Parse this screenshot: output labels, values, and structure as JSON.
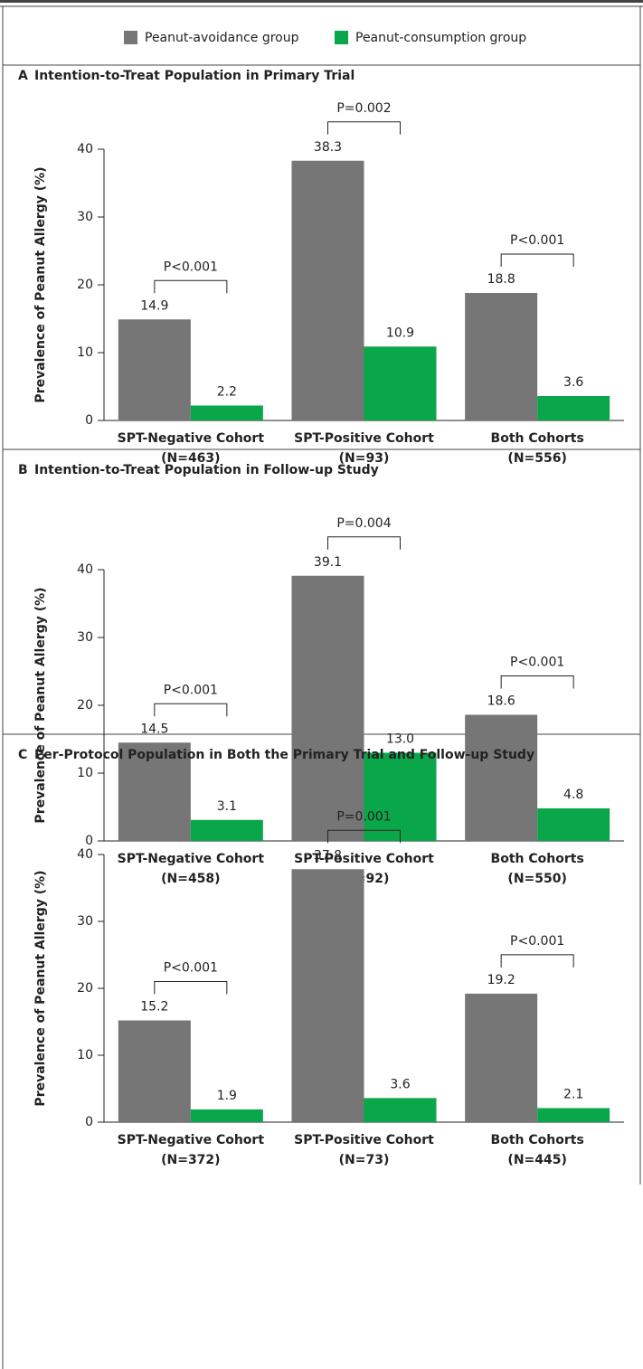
{
  "chart_data": [
    {
      "type": "bar",
      "label": "A",
      "title": "Intention-to-Treat Population in Primary Trial",
      "ylabel": "Prevalence of Peanut Allergy (%)",
      "categories": [
        "SPT-Negative Cohort",
        "SPT-Positive Cohort",
        "Both Cohorts"
      ],
      "n_labels": [
        "(N=463)",
        "(N=93)",
        "(N=556)"
      ],
      "p_values": [
        "P<0.001",
        "P=0.002",
        "P<0.001"
      ],
      "series": [
        {
          "name": "Peanut-avoidance group",
          "color": "#767676",
          "values": [
            14.9,
            38.3,
            18.8
          ],
          "value_labels": [
            "14.9",
            "38.3",
            "18.8"
          ]
        },
        {
          "name": "Peanut-consumption group",
          "color": "#0aa64a",
          "values": [
            2.2,
            10.9,
            3.6
          ],
          "value_labels": [
            "2.2",
            "10.9",
            "3.6"
          ]
        }
      ],
      "ylim": [
        0,
        40
      ],
      "yticks": [
        0,
        10,
        20,
        30,
        40
      ]
    },
    {
      "type": "bar",
      "label": "B",
      "title": "Intention-to-Treat Population in Follow-up Study",
      "ylabel": "Prevalence of Peanut Allergy (%)",
      "categories": [
        "SPT-Negative Cohort",
        "SPT-Positive Cohort",
        "Both Cohorts"
      ],
      "n_labels": [
        "(N=458)",
        "(N=92)",
        "(N=550)"
      ],
      "p_values": [
        "P<0.001",
        "P=0.004",
        "P<0.001"
      ],
      "series": [
        {
          "color": "#767676",
          "values": [
            14.5,
            39.1,
            18.6
          ],
          "value_labels": [
            "14.5",
            "39.1",
            "18.6"
          ]
        },
        {
          "color": "#0aa64a",
          "values": [
            3.1,
            13.0,
            4.8
          ],
          "value_labels": [
            "3.1",
            "13.0",
            "4.8"
          ]
        }
      ],
      "ylim": [
        0,
        40
      ],
      "yticks": [
        0,
        10,
        20,
        30,
        40
      ]
    },
    {
      "type": "bar",
      "label": "C",
      "title": "Per-Protocol Population in Both the Primary Trial and Follow-up Study",
      "ylabel": "Prevalence of Peanut Allergy (%)",
      "categories": [
        "SPT-Negative Cohort",
        "SPT-Positive Cohort",
        "Both Cohorts"
      ],
      "n_labels": [
        "(N=372)",
        "(N=73)",
        "(N=445)"
      ],
      "p_values": [
        "P<0.001",
        "P=0.001",
        "P<0.001"
      ],
      "series": [
        {
          "color": "#767676",
          "values": [
            15.2,
            37.8,
            19.2
          ],
          "value_labels": [
            "15.2",
            "37.8",
            "19.2"
          ]
        },
        {
          "color": "#0aa64a",
          "values": [
            1.9,
            3.6,
            2.1
          ],
          "value_labels": [
            "1.9",
            "3.6",
            "2.1"
          ]
        }
      ],
      "ylim": [
        0,
        40
      ],
      "yticks": [
        0,
        10,
        20,
        30,
        40
      ]
    }
  ]
}
